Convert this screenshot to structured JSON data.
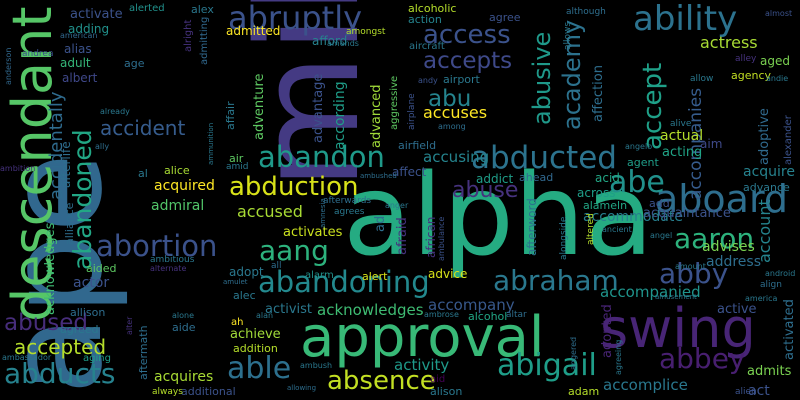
{
  "words": [
    {
      "text": "ape",
      "color": "#31688e"
    },
    {
      "text": "milly",
      "color": "#443a83"
    },
    {
      "text": "alpha",
      "color": "#25ab82"
    },
    {
      "text": "approval",
      "color": "#38b977"
    },
    {
      "text": "descendant",
      "color": "#56c667"
    },
    {
      "text": "swing",
      "color": "#482576"
    },
    {
      "text": "abruptly",
      "color": "#3b528b"
    },
    {
      "text": "ability",
      "color": "#2c728e"
    },
    {
      "text": "aboard",
      "color": "#2e6e8e"
    },
    {
      "text": "abducted",
      "color": "#2c738e"
    },
    {
      "text": "abandon",
      "color": "#1f9a8a"
    },
    {
      "text": "abduction",
      "color": "#d8e219"
    },
    {
      "text": "abortion",
      "color": "#3b528b"
    },
    {
      "text": "aang",
      "color": "#2db27d"
    },
    {
      "text": "abraham",
      "color": "#2a788e"
    },
    {
      "text": "abandoning",
      "color": "#23898e"
    },
    {
      "text": "aaron",
      "color": "#2db27d"
    },
    {
      "text": "abby",
      "color": "#3b528b"
    },
    {
      "text": "abbey",
      "color": "#481f70"
    },
    {
      "text": "abe",
      "color": "#21918c"
    },
    {
      "text": "abigail",
      "color": "#1f9e89"
    },
    {
      "text": "absence",
      "color": "#c2df23"
    },
    {
      "text": "able",
      "color": "#2d708e"
    },
    {
      "text": "abducts",
      "color": "#26828e"
    },
    {
      "text": "abused",
      "color": "#472d7b"
    },
    {
      "text": "accepted",
      "color": "#b5de2b"
    },
    {
      "text": "abuse",
      "color": "#46327e"
    },
    {
      "text": "abusive",
      "color": "#1f998a"
    },
    {
      "text": "academy",
      "color": "#2c728e"
    },
    {
      "text": "abu",
      "color": "#25848e"
    },
    {
      "text": "access",
      "color": "#3b528b"
    },
    {
      "text": "accepts",
      "color": "#3e4989"
    },
    {
      "text": "accept",
      "color": "#1fa088"
    },
    {
      "text": "accident",
      "color": "#365c8d"
    },
    {
      "text": "abandoned",
      "color": "#22a785"
    },
    {
      "text": "accidentally",
      "color": "#2f6b8e"
    },
    {
      "text": "acknowledges",
      "color": "#3fbc73"
    },
    {
      "text": "accommodate",
      "color": "#277f8e"
    },
    {
      "text": "accompanied",
      "color": "#1f948c"
    },
    {
      "text": "account",
      "color": "#25848e"
    },
    {
      "text": "accusing",
      "color": "#25848e"
    },
    {
      "text": "accuses",
      "color": "#fde725"
    },
    {
      "text": "accused",
      "color": "#a8db34"
    },
    {
      "text": "actress",
      "color": "#a8db34"
    },
    {
      "text": "accompanies",
      "color": "#365c8d"
    },
    {
      "text": "activated",
      "color": "#2e6e8e"
    },
    {
      "text": "acting",
      "color": "#20a486"
    },
    {
      "text": "actual",
      "color": "#b5de2b"
    },
    {
      "text": "acquire",
      "color": "#26828e"
    },
    {
      "text": "acquired",
      "color": "#fde725"
    },
    {
      "text": "address",
      "color": "#2e6e8e"
    },
    {
      "text": "advises",
      "color": "#7ad151"
    },
    {
      "text": "admiral",
      "color": "#52c569"
    },
    {
      "text": "activates",
      "color": "#cae11f"
    },
    {
      "text": "acquaintance",
      "color": "#3b528b"
    },
    {
      "text": "accompany",
      "color": "#38598c"
    },
    {
      "text": "accomplice",
      "color": "#2a788e"
    },
    {
      "text": "activity",
      "color": "#1f9a8a"
    },
    {
      "text": "active",
      "color": "#3b528b"
    },
    {
      "text": "admits",
      "color": "#7ad151"
    },
    {
      "text": "achieve",
      "color": "#a0da39"
    },
    {
      "text": "acquires",
      "color": "#a8db34"
    },
    {
      "text": "actor",
      "color": "#3b528b"
    },
    {
      "text": "activist",
      "color": "#2a788e"
    },
    {
      "text": "afterword",
      "color": "#2c728e"
    },
    {
      "text": "according",
      "color": "#1f9e89"
    },
    {
      "text": "adventure",
      "color": "#5ec962"
    },
    {
      "text": "advantage",
      "color": "#3b528b"
    },
    {
      "text": "advanced",
      "color": "#a0da39"
    },
    {
      "text": "affection",
      "color": "#2e6e8e"
    },
    {
      "text": "adopted",
      "color": "#482475"
    },
    {
      "text": "adoptive",
      "color": "#306a8e"
    },
    {
      "text": "african",
      "color": "#46327e"
    },
    {
      "text": "activate",
      "color": "#3b528b"
    },
    {
      "text": "adding",
      "color": "#21918c"
    },
    {
      "text": "alias",
      "color": "#3b528b"
    },
    {
      "text": "adult",
      "color": "#35b779"
    },
    {
      "text": "albert",
      "color": "#3f4889"
    },
    {
      "text": "agreed",
      "color": "#2a788e"
    },
    {
      "text": "alcoholic",
      "color": "#b5de2b"
    },
    {
      "text": "action",
      "color": "#25848e"
    },
    {
      "text": "agree",
      "color": "#3b528b"
    },
    {
      "text": "admitted",
      "color": "#fde725"
    },
    {
      "text": "afford",
      "color": "#26828e"
    },
    {
      "text": "agency",
      "color": "#c2df23"
    },
    {
      "text": "aged",
      "color": "#7ad151"
    },
    {
      "text": "aim",
      "color": "#3e4989"
    },
    {
      "text": "acid",
      "color": "#22a785"
    },
    {
      "text": "across",
      "color": "#1f9e89"
    },
    {
      "text": "add",
      "color": "#3b528b"
    },
    {
      "text": "advance",
      "color": "#2a788e"
    },
    {
      "text": "advice",
      "color": "#d8e219"
    },
    {
      "text": "alice",
      "color": "#a8db34"
    },
    {
      "text": "air",
      "color": "#5ec962"
    },
    {
      "text": "affect",
      "color": "#3b528b"
    },
    {
      "text": "addict",
      "color": "#1f9e89"
    },
    {
      "text": "ahead",
      "color": "#31688e"
    },
    {
      "text": "alameln",
      "color": "#22a785"
    },
    {
      "text": "aided",
      "color": "#5ec962"
    },
    {
      "text": "addition",
      "color": "#b5de2b"
    },
    {
      "text": "aide",
      "color": "#2e6e8e"
    },
    {
      "text": "alec",
      "color": "#2a788e"
    },
    {
      "text": "additional",
      "color": "#3b528b"
    },
    {
      "text": "aging",
      "color": "#1f9e89"
    },
    {
      "text": "always",
      "color": "#b5de2b"
    },
    {
      "text": "ah",
      "color": "#fde725"
    },
    {
      "text": "adam",
      "color": "#b5de2b"
    },
    {
      "text": "aid",
      "color": "#440154"
    },
    {
      "text": "alison",
      "color": "#2a788e"
    },
    {
      "text": "act",
      "color": "#3b528b"
    },
    {
      "text": "alien",
      "color": "#3b528b"
    },
    {
      "text": "alert",
      "color": "#d8e219"
    },
    {
      "text": "alarm",
      "color": "#21918c"
    },
    {
      "text": "adopt",
      "color": "#2a788e"
    },
    {
      "text": "alcohol",
      "color": "#22a785"
    },
    {
      "text": "agent",
      "color": "#1f9e89"
    },
    {
      "text": "allison",
      "color": "#2e6e8e"
    },
    {
      "text": "airfield",
      "color": "#2e6e8e"
    },
    {
      "text": "alex",
      "color": "#2a788e"
    },
    {
      "text": "alerted",
      "color": "#21918c"
    },
    {
      "text": "andrea",
      "color": "#3b528b"
    },
    {
      "text": "anderson",
      "color": "#31688e"
    },
    {
      "text": "american",
      "color": "#31688e"
    },
    {
      "text": "ana",
      "color": "#2a788e"
    },
    {
      "text": "alright",
      "color": "#46327e"
    },
    {
      "text": "admitting",
      "color": "#31688e"
    },
    {
      "text": "age",
      "color": "#2e6e8e"
    },
    {
      "text": "airport",
      "color": "#2a788e"
    },
    {
      "text": "andy",
      "color": "#3b528b"
    },
    {
      "text": "affair",
      "color": "#2a788e"
    },
    {
      "text": "among",
      "color": "#2e6e8e"
    },
    {
      "text": "aggressive",
      "color": "#5ec962"
    },
    {
      "text": "airplane",
      "color": "#3b528b"
    },
    {
      "text": "aircraft",
      "color": "#2a788e"
    },
    {
      "text": "amends",
      "color": "#2a788e"
    },
    {
      "text": "amongst",
      "color": "#b5de2b"
    },
    {
      "text": "allows",
      "color": "#2a788e"
    },
    {
      "text": "although",
      "color": "#2e6e8e"
    },
    {
      "text": "allow",
      "color": "#2a788e"
    },
    {
      "text": "alley",
      "color": "#46327e"
    },
    {
      "text": "almost",
      "color": "#3b528b"
    },
    {
      "text": "andie",
      "color": "#2a788e"
    },
    {
      "text": "alexander",
      "color": "#3b528b"
    },
    {
      "text": "alive",
      "color": "#2a788e"
    },
    {
      "text": "afterlife",
      "color": "#2e6e8e"
    },
    {
      "text": "ally",
      "color": "#2e6e8e"
    },
    {
      "text": "already",
      "color": "#2a788e"
    },
    {
      "text": "ambition",
      "color": "#46327e"
    },
    {
      "text": "ammunition",
      "color": "#2a788e"
    },
    {
      "text": "amid",
      "color": "#2a788e"
    },
    {
      "text": "alliance",
      "color": "#2e6e8e"
    },
    {
      "text": "ambitious",
      "color": "#2a788e"
    },
    {
      "text": "afterwards",
      "color": "#2e6e8e"
    },
    {
      "text": "agrees",
      "color": "#2a788e"
    },
    {
      "text": "amnesia",
      "color": "#2e6e8e"
    },
    {
      "text": "angelo",
      "color": "#2a788e"
    },
    {
      "text": "alternate",
      "color": "#46327e"
    },
    {
      "text": "ambulance",
      "color": "#3b528b"
    },
    {
      "text": "ambushed",
      "color": "#2e6e8e"
    },
    {
      "text": "anger",
      "color": "#2a788e"
    },
    {
      "text": "afraid",
      "color": "#46327e"
    },
    {
      "text": "ad",
      "color": "#2e6e8e"
    },
    {
      "text": "alongside",
      "color": "#2a788e"
    },
    {
      "text": "altered",
      "color": "#b5de2b"
    },
    {
      "text": "ancient",
      "color": "#2a788e"
    },
    {
      "text": "angel",
      "color": "#2a788e"
    },
    {
      "text": "amount",
      "color": "#2a788e"
    },
    {
      "text": "android",
      "color": "#2a788e"
    },
    {
      "text": "align",
      "color": "#2e6e8e"
    },
    {
      "text": "america",
      "color": "#2a788e"
    },
    {
      "text": "amusement",
      "color": "#2a788e"
    },
    {
      "text": "angered",
      "color": "#2e6e8e"
    },
    {
      "text": "agreeing",
      "color": "#2a788e"
    },
    {
      "text": "altar",
      "color": "#2e6e8e"
    },
    {
      "text": "ambrose",
      "color": "#2a788e"
    },
    {
      "text": "amulet",
      "color": "#2e6e8e"
    },
    {
      "text": "ambassador",
      "color": "#2a788e"
    },
    {
      "text": "alter",
      "color": "#46327e"
    },
    {
      "text": "aftermath",
      "color": "#2e6e8e"
    },
    {
      "text": "alone",
      "color": "#2a788e"
    },
    {
      "text": "ambush",
      "color": "#2a788e"
    },
    {
      "text": "allowing",
      "color": "#2e6e8e"
    },
    {
      "text": "alan",
      "color": "#2a788e"
    },
    {
      "text": "all",
      "color": "#2e6e8e"
    },
    {
      "text": "al",
      "color": "#2a788e"
    },
    {
      "text": "ally",
      "color": "#2e6e8e"
    }
  ]
}
